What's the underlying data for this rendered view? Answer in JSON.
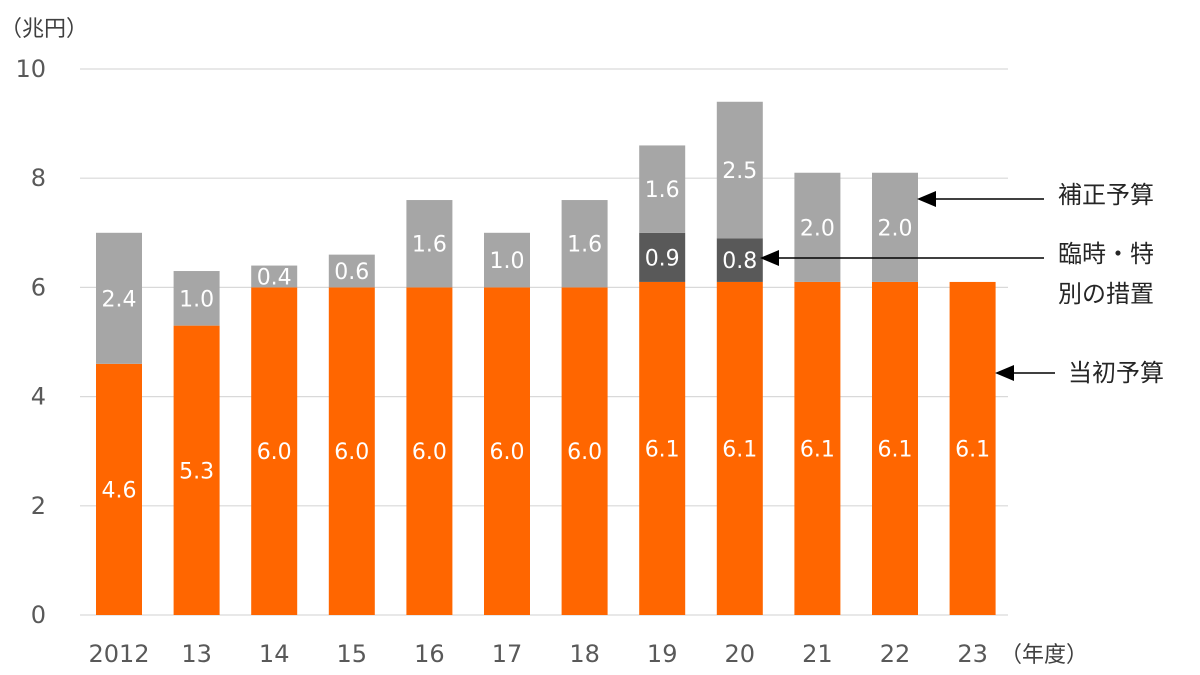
{
  "chart_data": {
    "type": "bar",
    "stacked": true,
    "y_unit_label": "（兆円）",
    "x_unit_label": "（年度）",
    "ylim": [
      0,
      10
    ],
    "yticks": [
      "0",
      "2",
      "4",
      "6",
      "8",
      "10"
    ],
    "categories": [
      "2012",
      "13",
      "14",
      "15",
      "16",
      "17",
      "18",
      "19",
      "20",
      "21",
      "22",
      "23"
    ],
    "series": [
      {
        "name": "当初予算",
        "color": "#ff6600",
        "values": [
          4.6,
          5.3,
          6.0,
          6.0,
          6.0,
          6.0,
          6.0,
          6.1,
          6.1,
          6.1,
          6.1,
          6.1
        ],
        "labels": [
          "4.6",
          "5.3",
          "6.0",
          "6.0",
          "6.0",
          "6.0",
          "6.0",
          "6.1",
          "6.1",
          "6.1",
          "6.1",
          "6.1"
        ]
      },
      {
        "name": "臨時・特別の措置",
        "color": "#595959",
        "values": [
          0,
          0,
          0,
          0,
          0,
          0,
          0,
          0.9,
          0.8,
          0,
          0,
          0
        ],
        "labels": [
          "",
          "",
          "",
          "",
          "",
          "",
          "",
          "0.9",
          "0.8",
          "",
          "",
          ""
        ]
      },
      {
        "name": "補正予算",
        "color": "#a6a6a6",
        "values": [
          2.4,
          1.0,
          0.4,
          0.6,
          1.6,
          1.0,
          1.6,
          1.6,
          2.5,
          2.0,
          2.0,
          0
        ],
        "labels": [
          "2.4",
          "1.0",
          "0.4",
          "0.6",
          "1.6",
          "1.0",
          "1.6",
          "1.6",
          "2.5",
          "2.0",
          "2.0",
          ""
        ]
      }
    ],
    "legend": {
      "hosei": "補正予算",
      "rinji_line1": "臨時・特",
      "rinji_line2": "別の措置",
      "toushou": "当初予算"
    }
  }
}
